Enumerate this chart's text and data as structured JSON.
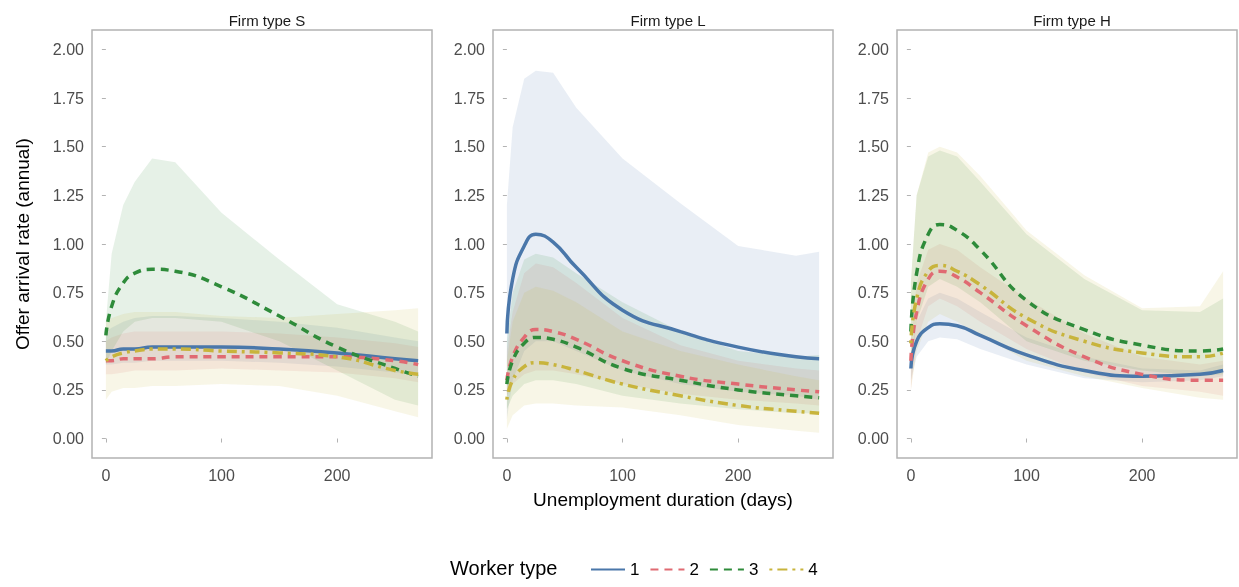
{
  "chart_data": [
    {
      "type": "line",
      "title": "Firm type S",
      "ylabel": "Offer arrival rate (annual)",
      "x": [
        0,
        5,
        15,
        25,
        40,
        60,
        100,
        150,
        200,
        250,
        270
      ],
      "xlim": [
        -12,
        282
      ],
      "xticks": [
        0,
        100,
        200
      ],
      "ylim": [
        -0.1,
        2.1
      ],
      "yticks": [
        {
          "value": 0,
          "label": "0.00"
        },
        0.25,
        {
          "value": 0.5,
          "label": "0.50"
        },
        0.75,
        {
          "value": 1,
          "label": "1.00"
        },
        1.25,
        {
          "value": 1.5,
          "label": "1.50"
        },
        1.75,
        {
          "value": 2,
          "label": "2.00"
        }
      ],
      "series": [
        {
          "color": "#4a77aa",
          "line_style": "solid",
          "values": [
            0.45,
            0.45,
            0.46,
            0.46,
            0.47,
            0.47,
            0.47,
            0.46,
            0.44,
            0.41,
            0.4
          ],
          "lower": [
            0.38,
            0.38,
            0.39,
            0.39,
            0.4,
            0.4,
            0.4,
            0.39,
            0.37,
            0.34,
            0.33
          ],
          "upper": [
            0.55,
            0.57,
            0.6,
            0.62,
            0.63,
            0.63,
            0.62,
            0.6,
            0.57,
            0.52,
            0.5
          ]
        },
        {
          "color": "#e06a72",
          "line_style": "dashed",
          "values": [
            0.4,
            0.4,
            0.41,
            0.41,
            0.41,
            0.42,
            0.42,
            0.42,
            0.42,
            0.4,
            0.38
          ],
          "lower": [
            0.33,
            0.33,
            0.34,
            0.35,
            0.35,
            0.35,
            0.36,
            0.35,
            0.34,
            0.31,
            0.29
          ],
          "upper": [
            0.5,
            0.52,
            0.54,
            0.55,
            0.55,
            0.55,
            0.55,
            0.54,
            0.52,
            0.49,
            0.47
          ]
        },
        {
          "color": "#2e8b3a",
          "line_style": "dashed",
          "values": [
            0.53,
            0.68,
            0.8,
            0.85,
            0.87,
            0.86,
            0.78,
            0.63,
            0.47,
            0.36,
            0.32
          ],
          "lower": [
            0.38,
            0.45,
            0.55,
            0.6,
            0.62,
            0.62,
            0.6,
            0.5,
            0.35,
            0.2,
            0.17
          ],
          "upper": [
            0.6,
            0.95,
            1.2,
            1.32,
            1.44,
            1.42,
            1.16,
            0.92,
            0.69,
            0.6,
            0.55
          ]
        },
        {
          "color": "#c8b43c",
          "line_style": "dotted",
          "values": [
            0.4,
            0.42,
            0.44,
            0.45,
            0.46,
            0.46,
            0.45,
            0.44,
            0.42,
            0.35,
            0.33
          ],
          "lower": [
            0.2,
            0.24,
            0.26,
            0.26,
            0.27,
            0.27,
            0.28,
            0.27,
            0.22,
            0.14,
            0.11
          ],
          "upper": [
            0.6,
            0.62,
            0.64,
            0.65,
            0.65,
            0.65,
            0.63,
            0.62,
            0.64,
            0.66,
            0.67
          ]
        }
      ]
    },
    {
      "type": "line",
      "title": "Firm type L",
      "xlabel": "Unemployment duration (days)",
      "legend": "bottom",
      "legend_title": "Worker type",
      "x": [
        0,
        5,
        15,
        25,
        40,
        60,
        100,
        150,
        200,
        250,
        270
      ],
      "xlim": [
        -12,
        282
      ],
      "xticks": [
        0,
        100,
        200
      ],
      "ylim": [
        -0.1,
        2.1
      ],
      "yticks": [
        {
          "value": 0,
          "label": "0.00"
        },
        0.25,
        {
          "value": 0.5,
          "label": "0.50"
        },
        0.75,
        {
          "value": 1,
          "label": "1.00"
        },
        1.25,
        {
          "value": 1.5,
          "label": "1.50"
        },
        1.75,
        {
          "value": 2,
          "label": "2.00"
        }
      ],
      "series": [
        {
          "name": "1",
          "color": "#4a77aa",
          "line_style": "solid",
          "values": [
            0.54,
            0.82,
            0.99,
            1.05,
            1.01,
            0.88,
            0.66,
            0.55,
            0.47,
            0.42,
            0.41
          ],
          "lower": [
            0.1,
            0.3,
            0.45,
            0.5,
            0.5,
            0.45,
            0.35,
            0.28,
            0.24,
            0.22,
            0.2
          ],
          "upper": [
            1.2,
            1.6,
            1.85,
            1.89,
            1.88,
            1.7,
            1.44,
            1.21,
            0.99,
            0.94,
            0.96
          ]
        },
        {
          "name": "2",
          "color": "#e06a72",
          "line_style": "dashed",
          "values": [
            0.3,
            0.42,
            0.52,
            0.56,
            0.55,
            0.51,
            0.4,
            0.32,
            0.28,
            0.25,
            0.24
          ],
          "lower": [
            0.22,
            0.28,
            0.33,
            0.35,
            0.35,
            0.33,
            0.28,
            0.23,
            0.2,
            0.18,
            0.17
          ],
          "upper": [
            0.45,
            0.65,
            0.85,
            0.9,
            0.88,
            0.8,
            0.62,
            0.48,
            0.4,
            0.36,
            0.35
          ]
        },
        {
          "name": "3",
          "color": "#2e8b3a",
          "line_style": "dashed",
          "values": [
            0.28,
            0.4,
            0.49,
            0.52,
            0.51,
            0.47,
            0.36,
            0.3,
            0.25,
            0.22,
            0.21
          ],
          "lower": [
            0.15,
            0.22,
            0.28,
            0.3,
            0.3,
            0.28,
            0.22,
            0.18,
            0.15,
            0.13,
            0.13
          ],
          "upper": [
            0.5,
            0.75,
            0.92,
            0.95,
            0.93,
            0.85,
            0.7,
            0.55,
            0.45,
            0.42,
            0.43
          ]
        },
        {
          "name": "4",
          "color": "#c8b43c",
          "line_style": "dotted",
          "values": [
            0.2,
            0.3,
            0.37,
            0.39,
            0.38,
            0.35,
            0.28,
            0.22,
            0.17,
            0.14,
            0.13
          ],
          "lower": [
            0.05,
            0.12,
            0.17,
            0.18,
            0.18,
            0.17,
            0.16,
            0.12,
            0.07,
            0.04,
            0.03
          ],
          "upper": [
            0.4,
            0.6,
            0.75,
            0.78,
            0.76,
            0.7,
            0.55,
            0.45,
            0.38,
            0.32,
            0.3
          ]
        }
      ]
    },
    {
      "type": "line",
      "title": "Firm type H",
      "x": [
        0,
        5,
        15,
        25,
        40,
        60,
        100,
        150,
        200,
        250,
        270
      ],
      "xlim": [
        -12,
        282
      ],
      "xticks": [
        0,
        100,
        200
      ],
      "ylim": [
        -0.1,
        2.1
      ],
      "yticks": [
        {
          "value": 0,
          "label": "0.00"
        },
        0.25,
        {
          "value": 0.5,
          "label": "0.50"
        },
        0.75,
        {
          "value": 1,
          "label": "1.00"
        },
        1.25,
        {
          "value": 1.5,
          "label": "1.50"
        },
        1.75,
        {
          "value": 2,
          "label": "2.00"
        }
      ],
      "series": [
        {
          "color": "#4a77aa",
          "line_style": "solid",
          "values": [
            0.36,
            0.5,
            0.57,
            0.59,
            0.58,
            0.53,
            0.43,
            0.35,
            0.32,
            0.33,
            0.35
          ],
          "lower": [
            0.3,
            0.42,
            0.5,
            0.52,
            0.51,
            0.46,
            0.38,
            0.31,
            0.29,
            0.3,
            0.32
          ],
          "upper": [
            0.42,
            0.6,
            0.72,
            0.75,
            0.72,
            0.65,
            0.52,
            0.42,
            0.36,
            0.35,
            0.38
          ]
        },
        {
          "color": "#e06a72",
          "line_style": "dashed",
          "values": [
            0.4,
            0.65,
            0.82,
            0.86,
            0.83,
            0.75,
            0.58,
            0.42,
            0.33,
            0.3,
            0.3
          ],
          "lower": [
            0.25,
            0.5,
            0.68,
            0.72,
            0.68,
            0.6,
            0.46,
            0.34,
            0.27,
            0.24,
            0.22
          ],
          "upper": [
            0.5,
            0.8,
            0.97,
            1.0,
            0.97,
            0.88,
            0.72,
            0.54,
            0.42,
            0.38,
            0.4
          ]
        },
        {
          "color": "#2e8b3a",
          "line_style": "dashed",
          "values": [
            0.55,
            0.85,
            1.05,
            1.1,
            1.07,
            0.97,
            0.71,
            0.56,
            0.48,
            0.45,
            0.46
          ],
          "lower": [
            0.35,
            0.6,
            0.78,
            0.82,
            0.78,
            0.7,
            0.5,
            0.4,
            0.35,
            0.32,
            0.33
          ],
          "upper": [
            0.8,
            1.25,
            1.45,
            1.48,
            1.45,
            1.32,
            1.05,
            0.82,
            0.66,
            0.65,
            0.72
          ]
        },
        {
          "color": "#c8b43c",
          "line_style": "dotted",
          "values": [
            0.49,
            0.72,
            0.86,
            0.89,
            0.86,
            0.79,
            0.62,
            0.5,
            0.44,
            0.42,
            0.44
          ],
          "lower": [
            0.25,
            0.45,
            0.6,
            0.64,
            0.6,
            0.53,
            0.4,
            0.32,
            0.26,
            0.21,
            0.2
          ],
          "upper": [
            0.8,
            1.25,
            1.47,
            1.5,
            1.47,
            1.35,
            1.07,
            0.84,
            0.67,
            0.68,
            0.86
          ]
        }
      ]
    }
  ]
}
